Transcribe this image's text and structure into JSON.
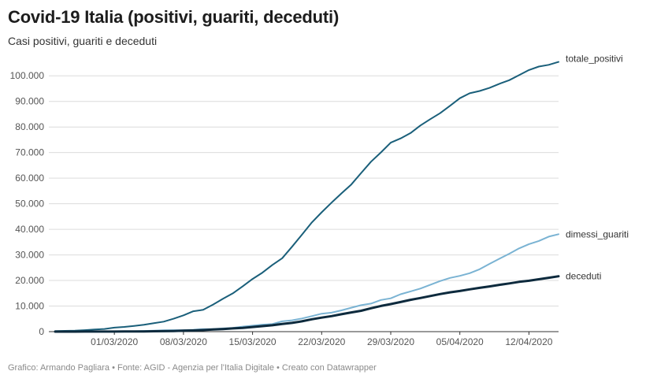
{
  "title": "Covid-19 Italia (positivi, guariti, deceduti)",
  "subtitle": "Casi positivi, guariti e deceduti",
  "footer": "Grafico: Armando Pagliara • Fonte: AGID - Agenzia per l'Italia Digitale • Creato con Datawrapper",
  "chart_data": {
    "type": "line",
    "title": "Covid-19 Italia (positivi, guariti, deceduti)",
    "subtitle": "Casi positivi, guariti e deceduti",
    "xlabel": "",
    "ylabel": "",
    "x": [
      "2020-02-24",
      "2020-02-25",
      "2020-02-26",
      "2020-02-27",
      "2020-02-28",
      "2020-02-29",
      "2020-03-01",
      "2020-03-02",
      "2020-03-03",
      "2020-03-04",
      "2020-03-05",
      "2020-03-06",
      "2020-03-07",
      "2020-03-08",
      "2020-03-09",
      "2020-03-10",
      "2020-03-11",
      "2020-03-12",
      "2020-03-13",
      "2020-03-14",
      "2020-03-15",
      "2020-03-16",
      "2020-03-17",
      "2020-03-18",
      "2020-03-19",
      "2020-03-20",
      "2020-03-21",
      "2020-03-22",
      "2020-03-23",
      "2020-03-24",
      "2020-03-25",
      "2020-03-26",
      "2020-03-27",
      "2020-03-28",
      "2020-03-29",
      "2020-03-30",
      "2020-03-31",
      "2020-04-01",
      "2020-04-02",
      "2020-04-03",
      "2020-04-04",
      "2020-04-05",
      "2020-04-06",
      "2020-04-07",
      "2020-04-08",
      "2020-04-09",
      "2020-04-10",
      "2020-04-11",
      "2020-04-12",
      "2020-04-13",
      "2020-04-14",
      "2020-04-15"
    ],
    "x_tick_labels": [
      "01/03/2020",
      "08/03/2020",
      "15/03/2020",
      "22/03/2020",
      "29/03/2020",
      "05/04/2020",
      "12/04/2020"
    ],
    "x_tick_dates": [
      "2020-03-01",
      "2020-03-08",
      "2020-03-15",
      "2020-03-22",
      "2020-03-29",
      "2020-04-05",
      "2020-04-12"
    ],
    "ylim": [
      0,
      105000
    ],
    "y_ticks": [
      0,
      10000,
      20000,
      30000,
      40000,
      50000,
      60000,
      70000,
      80000,
      90000,
      100000
    ],
    "y_tick_labels": [
      "0",
      "10.000",
      "20.000",
      "30.000",
      "40.000",
      "50.000",
      "60.000",
      "70.000",
      "80.000",
      "90.000",
      "100.000"
    ],
    "grid": true,
    "legend": "inline labels at line ends (right)",
    "series": [
      {
        "name": "totale_positivi",
        "color": "#1a5f7a",
        "stroke_width": 2,
        "values": [
          221,
          311,
          385,
          588,
          821,
          1049,
          1577,
          1835,
          2263,
          2706,
          3296,
          3916,
          5061,
          6387,
          7985,
          8514,
          10590,
          12839,
          14955,
          17750,
          20603,
          23073,
          26062,
          28710,
          33190,
          37860,
          42681,
          46638,
          50418,
          54030,
          57521,
          62013,
          66414,
          70065,
          73880,
          75528,
          77635,
          80572,
          83049,
          85388,
          88274,
          91246,
          93187,
          94067,
          95262,
          96877,
          98273,
          100269,
          102253,
          103616,
          104291,
          105418
        ]
      },
      {
        "name": "dimessi_guariti",
        "color": "#7ab3d3",
        "stroke_width": 2,
        "values": [
          1,
          1,
          3,
          45,
          46,
          50,
          83,
          149,
          160,
          276,
          414,
          523,
          589,
          622,
          724,
          1004,
          1045,
          1258,
          1439,
          1966,
          2335,
          2749,
          2941,
          4025,
          4440,
          5129,
          6072,
          7024,
          7432,
          8326,
          9362,
          10361,
          10950,
          12384,
          13030,
          14620,
          15729,
          16847,
          18278,
          19758,
          20996,
          21815,
          22837,
          24392,
          26491,
          28470,
          30455,
          32534,
          34211,
          35435,
          37130,
          38092
        ]
      },
      {
        "name": "deceduti",
        "color": "#0d2a3d",
        "stroke_width": 3,
        "values": [
          7,
          10,
          12,
          17,
          21,
          29,
          34,
          52,
          79,
          107,
          148,
          197,
          233,
          366,
          463,
          631,
          827,
          1016,
          1266,
          1441,
          1809,
          2158,
          2503,
          2978,
          3405,
          4032,
          4825,
          5476,
          6077,
          6820,
          7503,
          8165,
          9134,
          10023,
          10779,
          11591,
          12428,
          13155,
          13915,
          14681,
          15362,
          15887,
          16523,
          17127,
          17669,
          18279,
          18849,
          19468,
          19899,
          20465,
          21067,
          21645
        ]
      }
    ]
  }
}
